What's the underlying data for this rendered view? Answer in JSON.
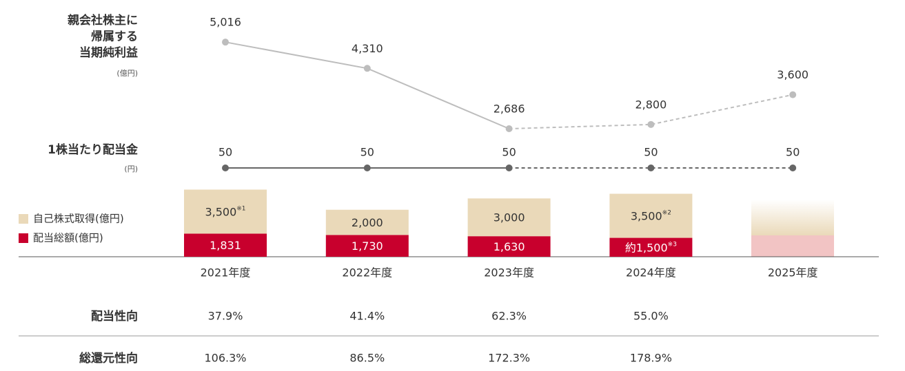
{
  "chart_data": [
    {
      "type": "line",
      "title_lines": [
        "親会社株主に",
        "帰属する",
        "当期純利益"
      ],
      "unit": "(億円)",
      "categories": [
        "2021年度",
        "2022年度",
        "2023年度",
        "2024年度",
        "2025年度"
      ],
      "values": [
        5016,
        4310,
        2686,
        2800,
        3600
      ],
      "value_labels": [
        "5,016",
        "4,310",
        "2,686",
        "2,800",
        "3,600"
      ],
      "color": "#bdbdbd",
      "dashed_from": 2
    },
    {
      "type": "line",
      "title_lines": [
        "1株当たり配当金"
      ],
      "unit": "(円)",
      "categories": [
        "2021年度",
        "2022年度",
        "2023年度",
        "2024年度",
        "2025年度"
      ],
      "values": [
        50,
        50,
        50,
        50,
        50
      ],
      "color": "#666666",
      "dashed_from": 2
    },
    {
      "type": "stacked_bar",
      "categories": [
        "2021年度",
        "2022年度",
        "2023年度",
        "2024年度",
        "2025年度"
      ],
      "series": [
        {
          "name": "配当総額(億円)",
          "color": "#c8002d",
          "values": [
            1831,
            1730,
            1630,
            1500,
            null
          ],
          "value_labels": [
            "1,831",
            "1,730",
            "1,630",
            "約1,500",
            null
          ],
          "notes": [
            null,
            null,
            null,
            "※3",
            null
          ]
        },
        {
          "name": "自己株式取得(億円)",
          "color": "#ead9b9",
          "values": [
            3500,
            2000,
            3000,
            3500,
            null
          ],
          "value_labels": [
            "3,500",
            "2,000",
            "3,000",
            "3,500",
            null
          ],
          "notes": [
            "※1",
            null,
            null,
            "※2",
            null
          ]
        }
      ]
    }
  ],
  "table": {
    "rows": [
      {
        "label": "配当性向",
        "values": [
          "37.9%",
          "41.4%",
          "62.3%",
          "55.0%"
        ]
      },
      {
        "label": "総還元性向",
        "values": [
          "106.3%",
          "86.5%",
          "172.3%",
          "178.9%"
        ]
      }
    ]
  }
}
